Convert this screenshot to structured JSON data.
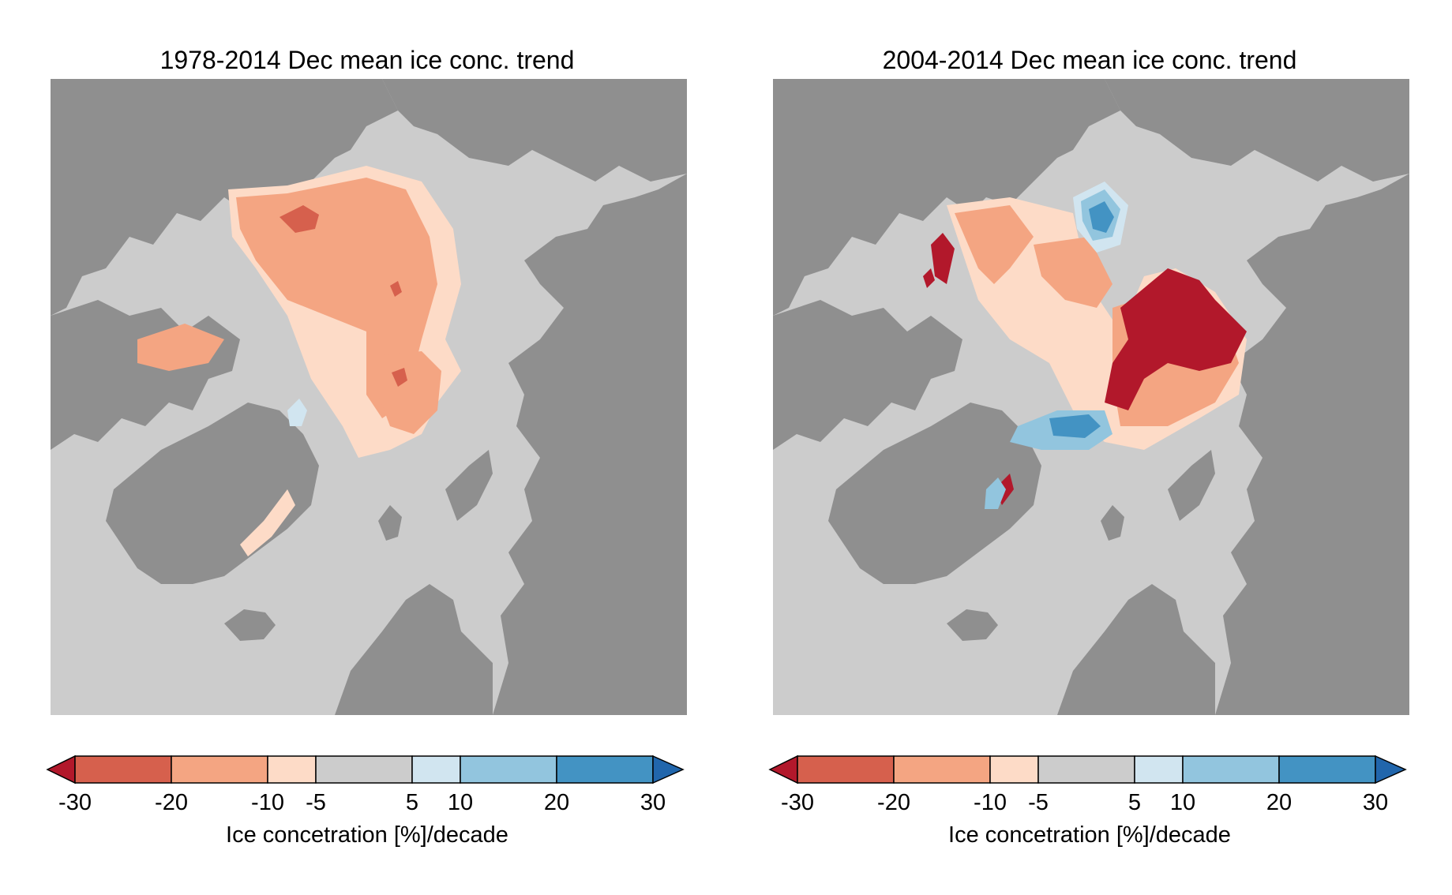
{
  "maps": [
    {
      "title": "1978-2014 Dec mean ice conc. trend",
      "colorbar": {
        "label": "Ice concetration [%]/decade",
        "ticks": [
          "-30",
          "-20",
          "-10",
          "-5",
          "5",
          "10",
          "20",
          "30"
        ]
      }
    },
    {
      "title": "2004-2014 Dec mean ice conc. trend",
      "colorbar": {
        "label": "Ice concetration [%]/decade",
        "ticks": [
          "-30",
          "-20",
          "-10",
          "-5",
          "5",
          "10",
          "20",
          "30"
        ]
      }
    }
  ],
  "legend_classes": [
    {
      "range": "< -30",
      "color": "#b2182b"
    },
    {
      "range": "-30 to -20",
      "color": "#d6604d"
    },
    {
      "range": "-20 to -10",
      "color": "#f4a582"
    },
    {
      "range": "-10 to -5",
      "color": "#fddbc7"
    },
    {
      "range": "-5 to 5",
      "color": "#cccccc"
    },
    {
      "range": "5 to 10",
      "color": "#d1e5f0"
    },
    {
      "range": "10 to 20",
      "color": "#92c5de"
    },
    {
      "range": "20 to 30",
      "color": "#4393c3"
    },
    {
      "range": "> 30",
      "color": "#2166ac"
    }
  ],
  "colors": {
    "land": "#8f8f8f",
    "ocean": "#cccccc",
    "coast_line": "#b0b0b0"
  }
}
